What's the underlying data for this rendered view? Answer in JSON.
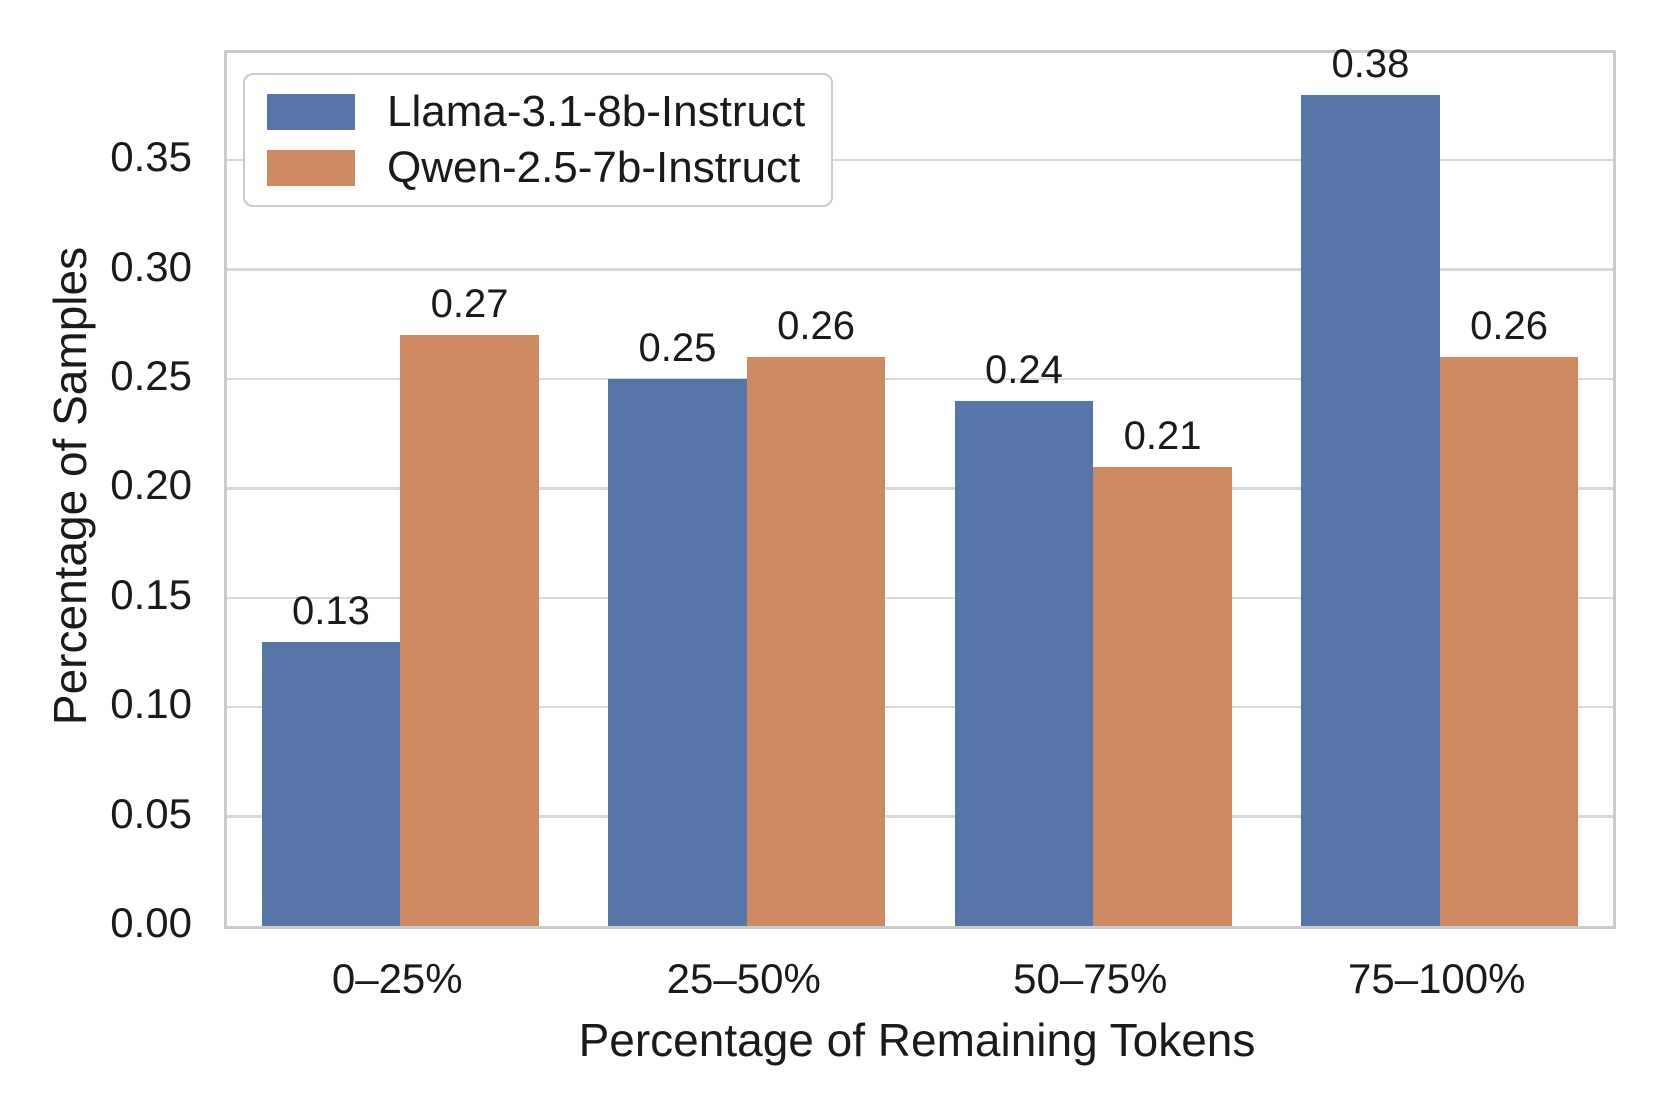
{
  "chart_data": {
    "type": "bar",
    "title": "",
    "xlabel": "Percentage of Remaining Tokens",
    "ylabel": "Percentage of Samples",
    "categories": [
      "0–25%",
      "25–50%",
      "50–75%",
      "75–100%"
    ],
    "series": [
      {
        "name": "Llama-3.1-8b-Instruct",
        "color": "#5776a8",
        "values": [
          0.13,
          0.25,
          0.24,
          0.38
        ],
        "bar_labels": [
          "0.13",
          "0.25",
          "0.24",
          "0.38"
        ]
      },
      {
        "name": "Qwen-2.5-7b-Instruct",
        "color": "#cd8a62",
        "values": [
          0.27,
          0.26,
          0.21,
          0.26
        ],
        "bar_labels": [
          "0.27",
          "0.26",
          "0.21",
          "0.26"
        ]
      }
    ],
    "ylim": [
      0,
      0.399
    ],
    "yticks": [
      0.0,
      0.05,
      0.1,
      0.15,
      0.2,
      0.25,
      0.3,
      0.35
    ],
    "ytick_labels": [
      "0.00",
      "0.05",
      "0.10",
      "0.15",
      "0.20",
      "0.25",
      "0.30",
      "0.35"
    ],
    "grid": "horizontal",
    "legend_position": "upper-left",
    "bar_labels_shown": true
  },
  "colors": {
    "background": "#ffffff",
    "grid": "#d9d9d9",
    "spine": "#cbcbcb",
    "text": "#1a1a1a"
  }
}
